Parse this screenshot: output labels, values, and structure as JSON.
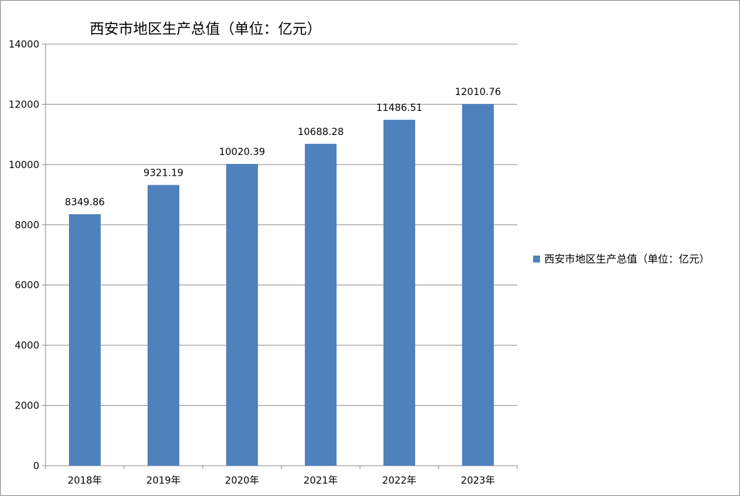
{
  "chart_data": {
    "type": "bar",
    "title": "西安市地区生产总值（单位：亿元）",
    "categories": [
      "2018年",
      "2019年",
      "2020年",
      "2021年",
      "2022年",
      "2023年"
    ],
    "series": [
      {
        "name": "西安市地区生产总值（单位：亿元）",
        "values": [
          8349.86,
          9321.19,
          10020.39,
          10688.28,
          11486.51,
          12010.76
        ],
        "labels": [
          "8349.86",
          "9321.19",
          "10020.39",
          "10688.28",
          "11486.51",
          "12010.76"
        ],
        "color": "#4f81bd"
      }
    ],
    "ylim": [
      0,
      14000
    ],
    "yticks": [
      "0",
      "2000",
      "4000",
      "6000",
      "8000",
      "10000",
      "12000",
      "14000"
    ],
    "xlabel": "",
    "ylabel": "",
    "grid": true,
    "legend_position": "right"
  }
}
